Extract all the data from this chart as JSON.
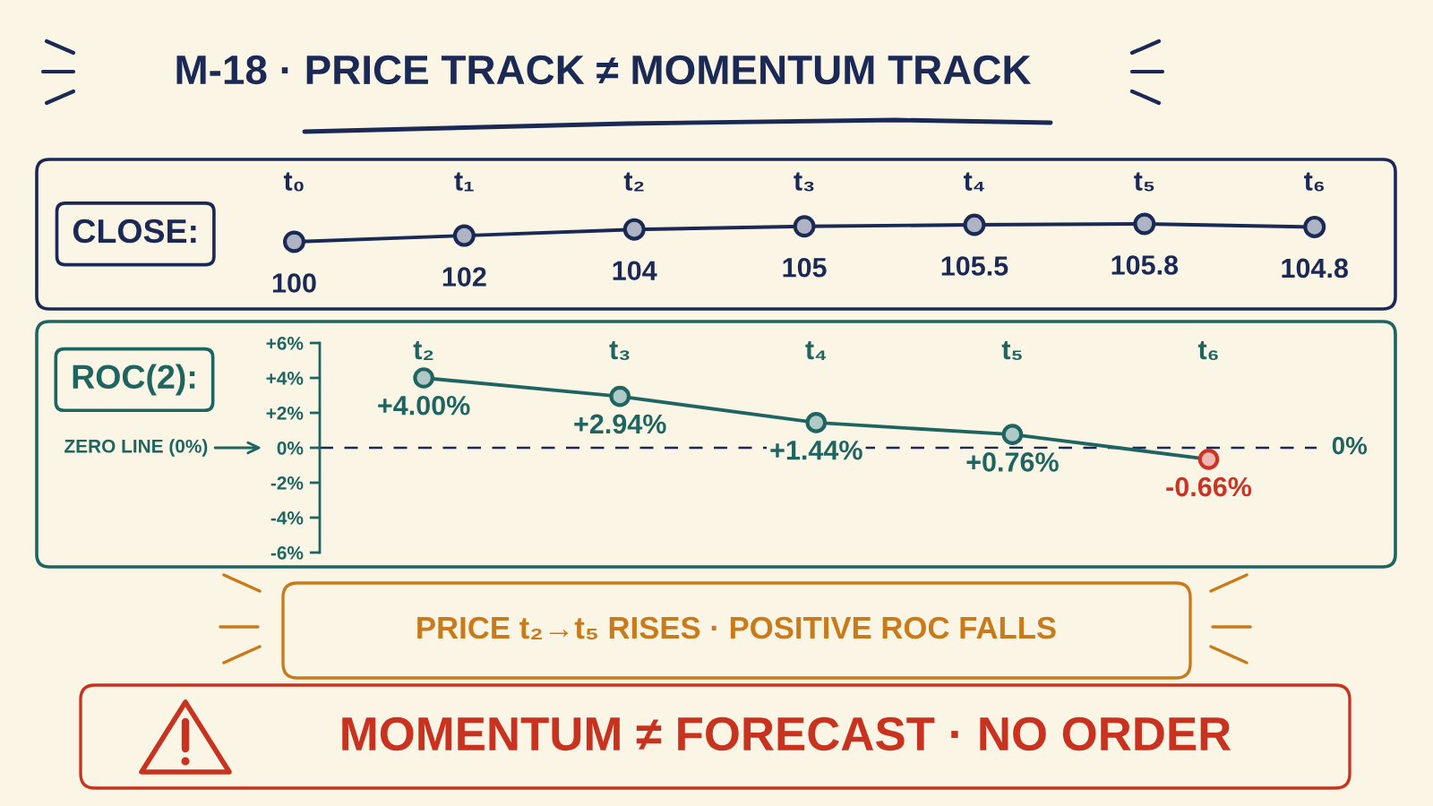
{
  "chart_data": [
    {
      "type": "line",
      "title": "M-18 · PRICE TRACK ≠ MOMENTUM TRACK",
      "ylabel": "CLOSE:",
      "categories": [
        "t₀",
        "t₁",
        "t₂",
        "t₃",
        "t₄",
        "t₅",
        "t₆"
      ],
      "series": [
        {
          "color": "#1b2a55",
          "values": [
            100,
            102,
            104,
            105,
            105.5,
            105.8,
            104.8
          ]
        }
      ],
      "data_labels": true,
      "marker": "circle",
      "line_style": "solid",
      "tick_labels": "x"
    },
    {
      "type": "line",
      "ylabel": "ROC(2):",
      "categories": [
        "t₂",
        "t₃",
        "t₄",
        "t₅",
        "t₆"
      ],
      "series": [
        {
          "color": "#1e6460",
          "colors": [
            "#1e6460",
            "#1e6460",
            "#1e6460",
            "#1e6460",
            "#cc3322"
          ],
          "values": [
            4.0,
            2.94,
            1.44,
            0.76,
            -0.66
          ],
          "value_labels": [
            "+4.00%",
            "+2.94%",
            "+1.44%",
            "+0.76%",
            "-0.66%"
          ]
        }
      ],
      "ylim": [
        -6,
        6
      ],
      "yticks": [
        {
          "value": 6,
          "label": "+6%"
        },
        {
          "value": 4,
          "label": "+4%"
        },
        {
          "value": 2,
          "label": "+2%"
        },
        {
          "value": 0,
          "label": "0%"
        },
        {
          "value": -2,
          "label": "-2%"
        },
        {
          "value": -4,
          "label": "-4%"
        },
        {
          "value": -6,
          "label": "-6%"
        }
      ],
      "ref_lines": [
        {
          "axis": "y",
          "value": 0,
          "label": "0%",
          "line_style": "dashed",
          "color": "#1b2a55"
        }
      ],
      "annotations": [
        "ZERO LINE (0%)",
        "PRICE t₂→t₅ RISES · POSITIVE ROC FALLS",
        "MOMENTUM ≠ FORECAST · NO ORDER"
      ],
      "marker": "circle",
      "line_style": "solid"
    }
  ]
}
